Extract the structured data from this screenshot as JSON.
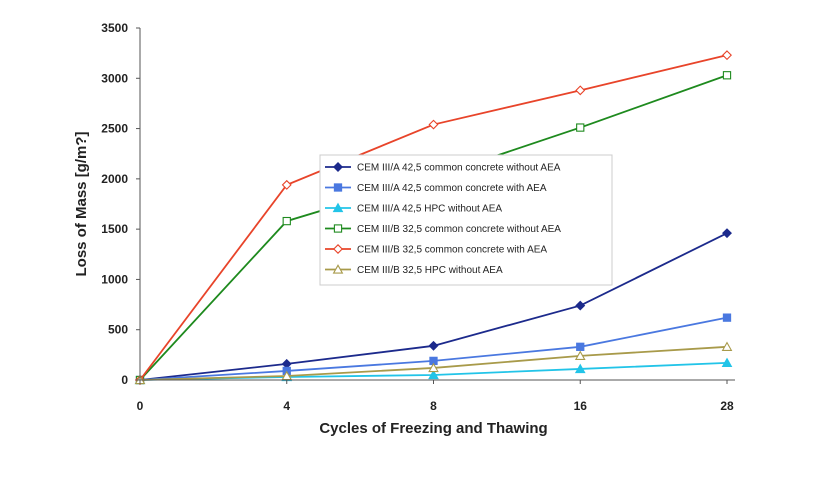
{
  "chart_data": {
    "type": "line",
    "x_categories": [
      "0",
      "4",
      "8",
      "16",
      "28"
    ],
    "xlabel": "Cycles of Freezing and Thawing",
    "ylabel": "Loss of Mass [g/m?]",
    "ylim": [
      0,
      3500
    ],
    "y_ticks": [
      "0",
      "500",
      "1000",
      "1500",
      "2000",
      "2500",
      "3000",
      "3500"
    ],
    "grid": false,
    "legend_position": "center",
    "series": [
      {
        "name": "CEM III/A 42,5 common concrete without AEA",
        "color": "#1c2a8c",
        "marker": "diamond-filled",
        "values": [
          0,
          160,
          340,
          740,
          1460
        ]
      },
      {
        "name": "CEM III/A 42,5 common concrete with AEA",
        "color": "#4a78e0",
        "marker": "square-filled",
        "values": [
          0,
          90,
          190,
          330,
          620
        ]
      },
      {
        "name": "CEM III/A 42,5 HPC without AEA",
        "color": "#22c4e8",
        "marker": "triangle-filled",
        "values": [
          0,
          30,
          50,
          110,
          170
        ]
      },
      {
        "name": "CEM III/B 32,5 common concrete without AEA",
        "color": "#1e8a1e",
        "marker": "square-open",
        "values": [
          0,
          1580,
          2020,
          2510,
          3030
        ]
      },
      {
        "name": "CEM III/B 32,5 common concrete with AEA",
        "color": "#e8442a",
        "marker": "diamond-open",
        "values": [
          0,
          1940,
          2540,
          2880,
          3230
        ]
      },
      {
        "name": "CEM III/B 32,5 HPC without AEA",
        "color": "#a89a4a",
        "marker": "triangle-open",
        "values": [
          0,
          40,
          120,
          240,
          330
        ]
      }
    ]
  }
}
